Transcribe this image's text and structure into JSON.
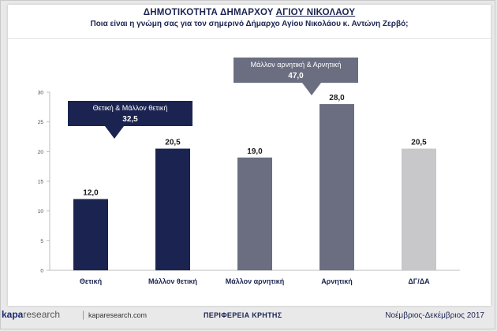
{
  "header": {
    "title_prefix": "ΔΗΜΟΤΙΚΟΤΗΤΑ ΔΗΜΑΡΧΟΥ ",
    "title_underlined": "ΑΓΙΟΥ ΝΙΚΟΛΑΟΥ",
    "subtitle": "Ποια είναι η γνώμη σας για τον σημερινό Δήμαρχο Αγίου Νικολάου κ. Αντώνη Ζερβό;"
  },
  "footer": {
    "logo_main": "kapa",
    "logo_sub": "research",
    "separator": "|",
    "website": "kaparesearch.com",
    "region": "ΠΕΡΙΦΕΡΕΙΑ ΚΡΗΤΗΣ",
    "period": "Νοέμβριος-Δεκέμβριος 2017"
  },
  "colors": {
    "positive": "#1b2451",
    "negative": "#6b6e80",
    "dk": "#c8c8cb",
    "callout_positive": "#1b2451",
    "callout_negative": "#6b6e80"
  },
  "chart_data": {
    "type": "bar",
    "categories": [
      "Θετική",
      "Μάλλον θετική",
      "Μάλλον αρνητική",
      "Αρνητική",
      "ΔΓ/ΔΑ"
    ],
    "values": [
      12.0,
      20.5,
      19.0,
      28.0,
      20.5
    ],
    "value_labels": [
      "12,0",
      "20,5",
      "19,0",
      "28,0",
      "20,5"
    ],
    "bar_groups": [
      "positive",
      "positive",
      "negative",
      "negative",
      "dk"
    ],
    "ylim": [
      0,
      30
    ],
    "yticks": [
      0,
      5,
      10,
      15,
      20,
      25,
      30
    ],
    "grid": false,
    "annotations": [
      {
        "label": "Θετική & Μάλλον θετική",
        "value": "32,5",
        "group": "positive",
        "arrow_category": 1
      },
      {
        "label": "Μάλλον αρνητική & Αρνητική",
        "value": "47,0",
        "group": "negative",
        "arrow_category": 3
      }
    ]
  }
}
